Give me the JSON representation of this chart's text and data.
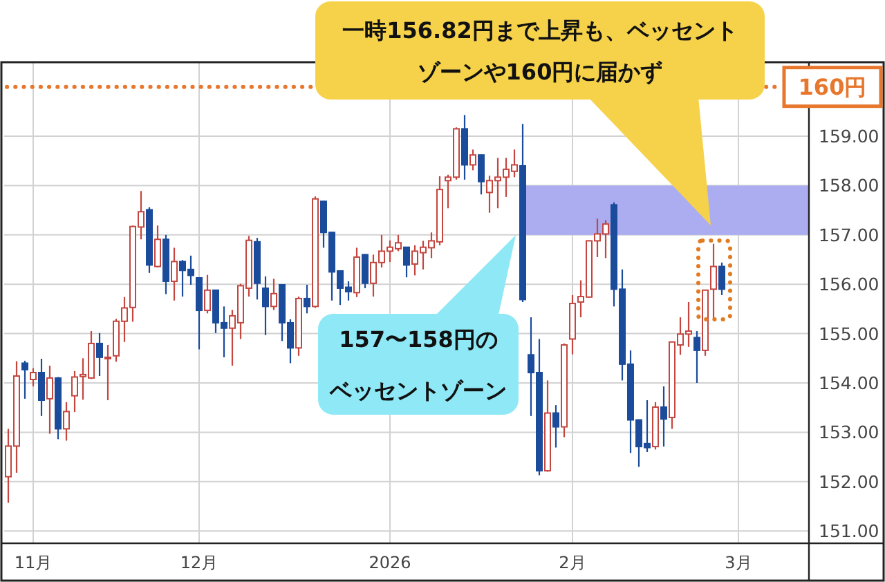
{
  "chart_data": {
    "type": "candlestick",
    "categories": [
      null,
      null,
      null,
      "11月",
      null,
      null,
      null,
      null,
      null,
      null,
      null,
      null,
      null,
      null,
      null,
      null,
      null,
      null,
      null,
      null,
      null,
      null,
      null,
      "12月",
      null,
      null,
      null,
      null,
      null,
      null,
      null,
      null,
      null,
      null,
      null,
      null,
      null,
      null,
      null,
      null,
      null,
      null,
      null,
      null,
      null,
      null,
      "2026",
      null,
      null,
      null,
      null,
      null,
      null,
      null,
      null,
      null,
      null,
      null,
      null,
      null,
      null,
      null,
      null,
      null,
      null,
      null,
      null,
      null,
      "2月",
      null,
      null,
      null,
      null,
      null,
      null,
      null,
      null,
      null,
      null,
      null,
      null,
      null,
      null,
      null,
      null,
      null,
      null,
      null,
      "3月",
      null,
      null,
      null,
      null,
      null,
      null,
      null,
      null
    ],
    "ohlc": [
      [
        152.1,
        153.07,
        151.57,
        152.72
      ],
      [
        152.72,
        154.44,
        152.18,
        154.14
      ],
      [
        154.4,
        154.45,
        153.68,
        154.27
      ],
      [
        154.07,
        154.3,
        153.93,
        154.21
      ],
      [
        154.21,
        154.49,
        153.33,
        153.65
      ],
      [
        153.68,
        154.35,
        152.97,
        154.1
      ],
      [
        154.1,
        154.12,
        152.86,
        153.07
      ],
      [
        153.07,
        153.61,
        152.83,
        153.42
      ],
      [
        153.74,
        154.24,
        153.41,
        154.12
      ],
      [
        154.13,
        154.5,
        153.66,
        154.17
      ],
      [
        154.1,
        155.05,
        154.08,
        154.8
      ],
      [
        154.8,
        155.01,
        154.14,
        154.52
      ],
      [
        154.5,
        154.77,
        153.65,
        154.52
      ],
      [
        154.55,
        155.3,
        154.43,
        155.25
      ],
      [
        155.25,
        155.74,
        154.83,
        155.52
      ],
      [
        155.53,
        157.19,
        155.24,
        157.17
      ],
      [
        157.16,
        157.89,
        156.91,
        157.47
      ],
      [
        157.51,
        157.56,
        156.23,
        156.39
      ],
      [
        156.36,
        157.19,
        156.34,
        156.91
      ],
      [
        156.91,
        157.0,
        155.8,
        156.06
      ],
      [
        156.06,
        156.74,
        155.67,
        156.46
      ],
      [
        156.46,
        156.49,
        155.75,
        156.28
      ],
      [
        156.3,
        156.58,
        155.99,
        156.18
      ],
      [
        156.13,
        156.14,
        154.68,
        155.47
      ],
      [
        155.47,
        156.19,
        155.41,
        155.88
      ],
      [
        155.88,
        155.89,
        155.01,
        155.22
      ],
      [
        155.22,
        155.55,
        154.52,
        155.11
      ],
      [
        155.11,
        155.48,
        154.35,
        155.36
      ],
      [
        155.22,
        156.01,
        154.89,
        155.97
      ],
      [
        155.92,
        156.98,
        155.75,
        156.89
      ],
      [
        156.86,
        156.94,
        155.69,
        156.02
      ],
      [
        155.92,
        156.16,
        154.97,
        155.55
      ],
      [
        155.55,
        156.11,
        155.48,
        155.81
      ],
      [
        155.99,
        156.0,
        154.85,
        155.22
      ],
      [
        155.22,
        155.29,
        154.4,
        154.71
      ],
      [
        154.71,
        155.75,
        154.55,
        155.71
      ],
      [
        155.71,
        155.99,
        155.41,
        155.55
      ],
      [
        155.55,
        157.78,
        155.52,
        157.73
      ],
      [
        157.68,
        157.69,
        156.74,
        157.05
      ],
      [
        157.05,
        157.06,
        155.67,
        156.25
      ],
      [
        156.27,
        156.28,
        155.58,
        155.92
      ],
      [
        155.94,
        156.06,
        155.67,
        155.85
      ],
      [
        155.83,
        156.74,
        155.74,
        156.55
      ],
      [
        156.6,
        156.61,
        155.92,
        156.02
      ],
      [
        156.02,
        156.6,
        155.75,
        156.44
      ],
      [
        156.44,
        157.0,
        156.34,
        156.67
      ],
      [
        156.67,
        156.89,
        156.45,
        156.75
      ],
      [
        156.72,
        157.0,
        156.67,
        156.84
      ],
      [
        156.75,
        156.76,
        156.14,
        156.39
      ],
      [
        156.41,
        156.79,
        156.18,
        156.67
      ],
      [
        156.64,
        156.88,
        156.3,
        156.75
      ],
      [
        156.74,
        157.05,
        156.53,
        156.88
      ],
      [
        156.86,
        158.19,
        156.79,
        157.92
      ],
      [
        158.1,
        158.22,
        157.54,
        158.17
      ],
      [
        158.17,
        159.18,
        158.12,
        159.15
      ],
      [
        159.15,
        159.43,
        158.12,
        158.42
      ],
      [
        158.42,
        158.73,
        158.31,
        158.62
      ],
      [
        158.62,
        158.63,
        157.82,
        158.08
      ],
      [
        157.86,
        158.2,
        157.45,
        158.1
      ],
      [
        158.1,
        158.56,
        157.54,
        158.17
      ],
      [
        158.17,
        158.56,
        157.77,
        158.33
      ],
      [
        158.29,
        158.73,
        158.17,
        158.42
      ],
      [
        158.4,
        159.25,
        155.64,
        155.69
      ],
      [
        154.57,
        155.33,
        153.33,
        154.21
      ],
      [
        154.21,
        154.89,
        152.13,
        152.22
      ],
      [
        152.22,
        154.05,
        152.2,
        153.39
      ],
      [
        153.39,
        153.55,
        152.69,
        153.11
      ],
      [
        153.11,
        154.8,
        152.9,
        154.77
      ],
      [
        154.89,
        155.78,
        154.58,
        155.61
      ],
      [
        155.64,
        156.08,
        155.33,
        155.75
      ],
      [
        155.74,
        156.89,
        155.73,
        156.88
      ],
      [
        156.88,
        157.33,
        156.55,
        157.02
      ],
      [
        157.02,
        157.3,
        156.53,
        157.22
      ],
      [
        157.61,
        157.66,
        155.55,
        155.9
      ],
      [
        155.9,
        156.3,
        154.05,
        154.38
      ],
      [
        154.38,
        154.66,
        152.58,
        153.25
      ],
      [
        153.25,
        153.26,
        152.3,
        152.71
      ],
      [
        152.77,
        153.65,
        152.6,
        152.69
      ],
      [
        152.71,
        153.61,
        152.65,
        153.51
      ],
      [
        153.51,
        153.93,
        152.71,
        153.27
      ],
      [
        153.3,
        154.84,
        153.07,
        154.83
      ],
      [
        154.77,
        155.33,
        154.57,
        154.99
      ],
      [
        154.99,
        155.64,
        154.73,
        155.05
      ],
      [
        154.92,
        155.05,
        154.0,
        154.66
      ],
      [
        154.66,
        155.89,
        154.55,
        155.88
      ],
      [
        155.9,
        156.82,
        155.27,
        156.36
      ],
      [
        156.36,
        156.44,
        155.78,
        155.9
      ],
      null,
      null,
      null,
      null,
      null,
      null,
      null,
      null,
      null,
      null
    ],
    "ylim": [
      150.75,
      160.5
    ],
    "yticks": [
      {
        "value": 151,
        "label": "151.00"
      },
      {
        "value": 152,
        "label": "152.00"
      },
      {
        "value": 153,
        "label": "153.00"
      },
      {
        "value": 154,
        "label": "154.00"
      },
      {
        "value": 155,
        "label": "155.00"
      },
      {
        "value": 156,
        "label": "156.00"
      },
      {
        "value": 157,
        "label": "157.00"
      },
      {
        "value": 158,
        "label": "158.00"
      },
      {
        "value": 159,
        "label": "159.00"
      }
    ],
    "grid": true,
    "bands": [
      {
        "axis": "y",
        "from": 157,
        "to": 158,
        "color": "#abadf0"
      }
    ],
    "ref_lines": [
      {
        "axis": "y",
        "value": 160,
        "label": "160円",
        "color": "#e8772e",
        "line_style": "dotted"
      }
    ],
    "annotations": [
      "一時156.82円まで上昇も、ベッセントゾーンや160円に届かず",
      "157〜158円のベッセントゾーン"
    ]
  }
}
